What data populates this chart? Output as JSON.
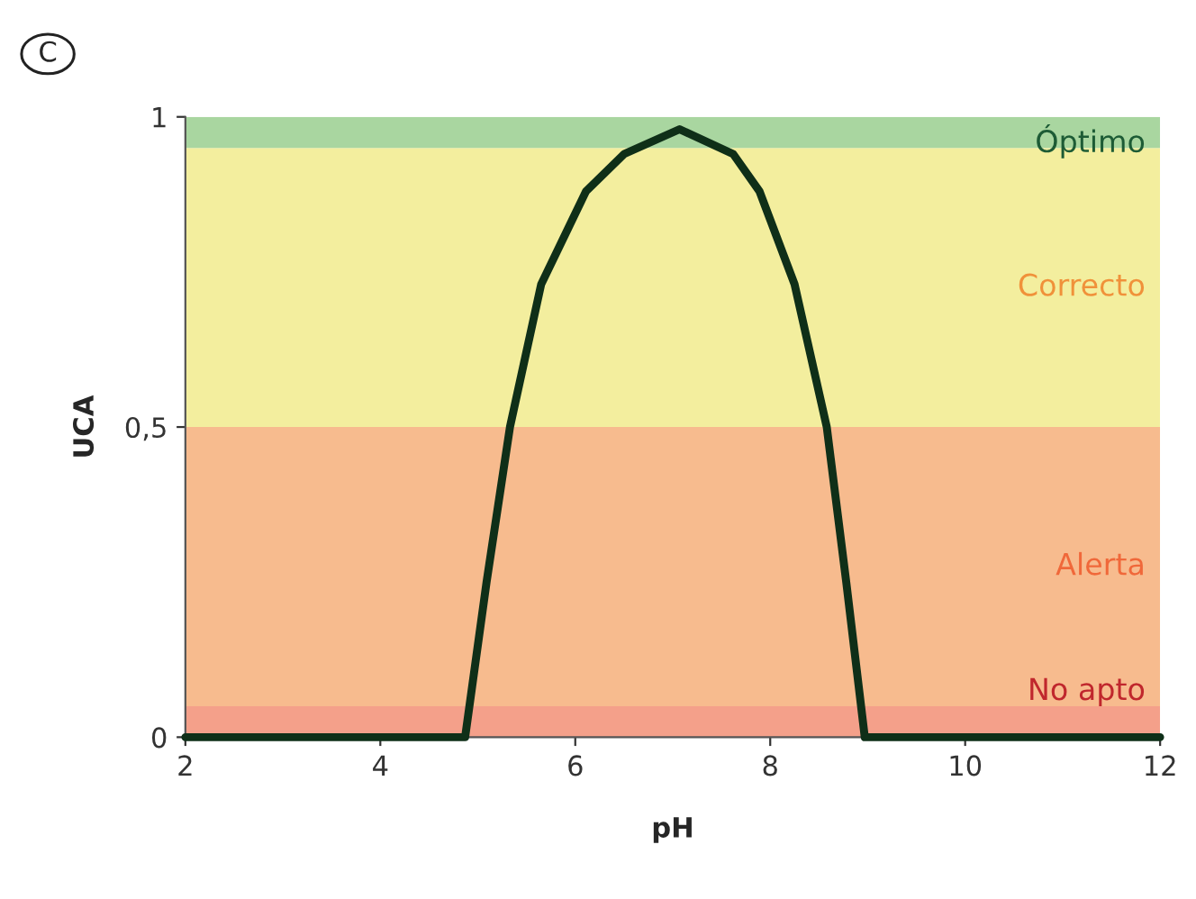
{
  "chart_data": {
    "type": "line",
    "xlabel": "pH",
    "ylabel": "UCA",
    "annotations": [
      "C"
    ],
    "x": [
      2,
      4.87,
      5.09,
      5.33,
      5.65,
      6.11,
      6.5,
      7.07,
      7.62,
      7.89,
      8.25,
      8.58,
      8.78,
      8.97,
      12
    ],
    "series": [
      {
        "color": "#0f2f18",
        "values": [
          0,
          0,
          0.25,
          0.5,
          0.73,
          0.88,
          0.94,
          0.98,
          0.94,
          0.88,
          0.73,
          0.5,
          0.25,
          0,
          0
        ]
      }
    ],
    "xlim": [
      2,
      12
    ],
    "ylim": [
      0,
      1
    ],
    "xticks": [
      2,
      4,
      6,
      8,
      10,
      12
    ],
    "yticks": [
      0,
      {
        "value": 0.5,
        "label": "0,5"
      },
      1
    ],
    "bands": [
      {
        "axis": "y",
        "from": 0,
        "to": 0.05,
        "label": "No apto",
        "color": "#f4a08a"
      },
      {
        "axis": "y",
        "from": 0.05,
        "to": 0.5,
        "label": "Alerta",
        "color": "#f7bb8e"
      },
      {
        "axis": "y",
        "from": 0.5,
        "to": 0.95,
        "label": "Correcto",
        "color": "#f3ee9e"
      },
      {
        "axis": "y",
        "from": 0.95,
        "to": 1,
        "label": "Óptimo",
        "color": "#a9d6a0"
      }
    ],
    "grid": false,
    "legend": false,
    "marker": "none",
    "line_style": "solid"
  }
}
